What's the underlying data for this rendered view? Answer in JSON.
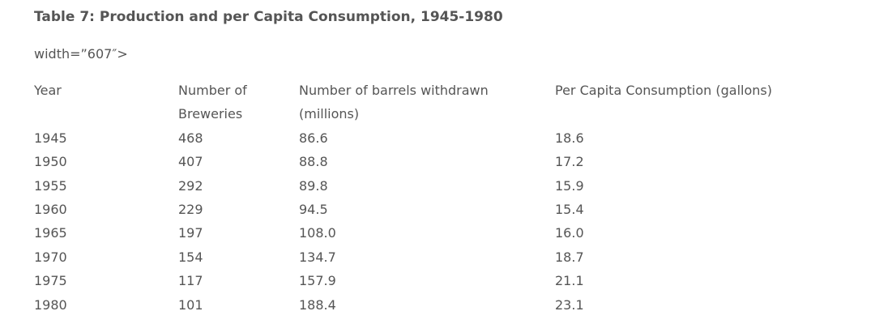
{
  "table": {
    "title": "Table 7: Production and per Capita Consumption, 1945-1980",
    "stray_text": "width=”607″>",
    "headers": {
      "year": "Year",
      "breweries_line1": "Number of",
      "breweries_line2": "Breweries",
      "barrels_line1": "Number of barrels withdrawn",
      "barrels_line2": "(millions)",
      "percap": "Per Capita Consumption (gallons)"
    },
    "rows": [
      {
        "year": "1945",
        "breweries": "468",
        "barrels": "86.6",
        "percap": "18.6"
      },
      {
        "year": "1950",
        "breweries": "407",
        "barrels": "88.8",
        "percap": "17.2"
      },
      {
        "year": "1955",
        "breweries": "292",
        "barrels": "89.8",
        "percap": "15.9"
      },
      {
        "year": "1960",
        "breweries": "229",
        "barrels": "94.5",
        "percap": "15.4"
      },
      {
        "year": "1965",
        "breweries": "197",
        "barrels": "108.0",
        "percap": "16.0"
      },
      {
        "year": "1970",
        "breweries": "154",
        "barrels": "134.7",
        "percap": "18.7"
      },
      {
        "year": "1975",
        "breweries": "117",
        "barrels": "157.9",
        "percap": "21.1"
      },
      {
        "year": "1980",
        "breweries": "101",
        "barrels": "188.4",
        "percap": "23.1"
      }
    ]
  }
}
